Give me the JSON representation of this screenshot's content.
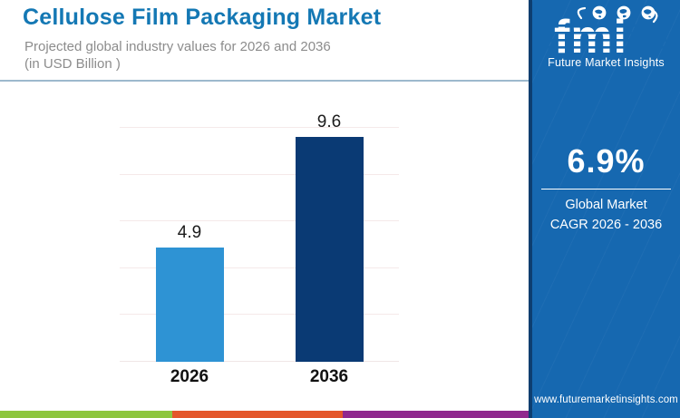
{
  "header": {
    "title": "Cellulose Film Packaging Market",
    "subtitle_line1": "Projected global industry values for 2026 and 2036",
    "subtitle_line2": "(in USD Billion )"
  },
  "chart_data": {
    "type": "bar",
    "categories": [
      "2026",
      "2036"
    ],
    "values": [
      4.9,
      9.6
    ],
    "data_labels": [
      "4.9",
      "9.6"
    ],
    "title": "Cellulose Film Packaging Market",
    "subtitle": "Projected global industry values for 2026 and 2036 (in USD Billion )",
    "unit": "USD Billion",
    "xlabel": "",
    "ylabel": "",
    "ylim": [
      0,
      10
    ],
    "gridlines": [
      2,
      4,
      6,
      8,
      10
    ],
    "grid_on": true,
    "legend": "none",
    "bar_colors": [
      "#2e93d4",
      "#0a3a74"
    ]
  },
  "sidebar": {
    "logo_text": "fmi",
    "logo_caption": "Future Market Insights",
    "cagr_value": "6.9%",
    "cagr_label_line1": "Global Market",
    "cagr_label_line2": "CAGR 2026 - 2036",
    "website": "www.futuremarketinsights.com",
    "bg_color": "#1668b0"
  },
  "footer_stripe_colors": [
    "#8dc63f",
    "#e4562a",
    "#90298e"
  ]
}
